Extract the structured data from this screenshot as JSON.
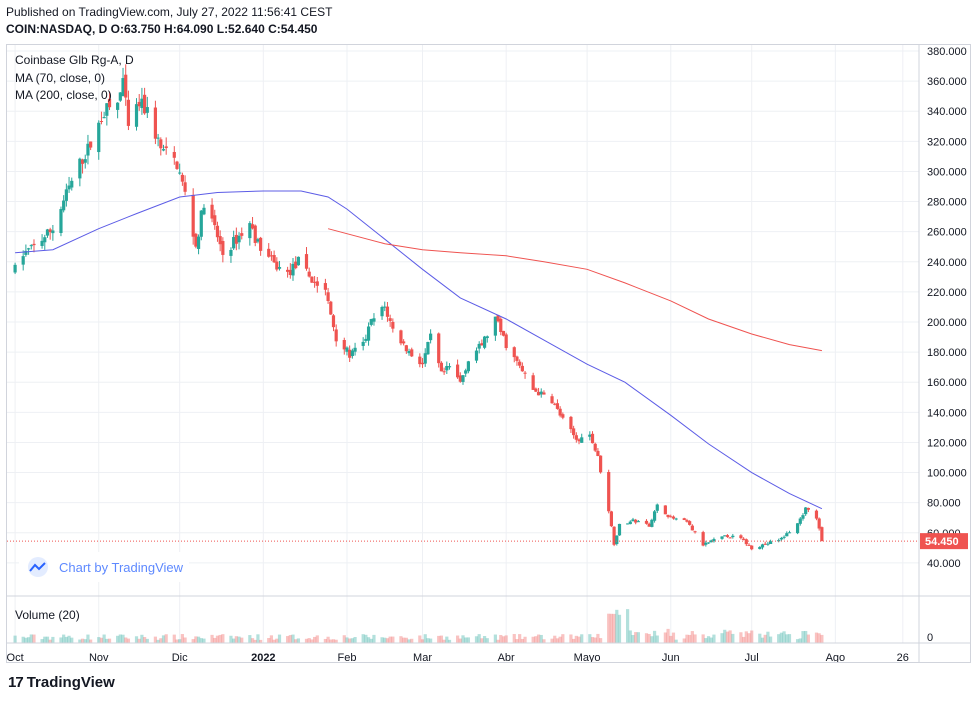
{
  "header": {
    "published": "Published on TradingView.com, July 27, 2022 11:56:41 CEST",
    "ohlc": "COIN:NASDAQ, D O:63.750 H:64.090 L:52.640 C:54.450"
  },
  "legend": {
    "symbol": "Coinbase Glb Rg-A, D",
    "ma70": "MA (70, close, 0)",
    "ma200": "MA (200, close, 0)",
    "volume": "Volume (20)"
  },
  "badge": {
    "text": "Chart by TradingView"
  },
  "footer": {
    "brand": "TradingView"
  },
  "colors": {
    "up": "#26a69a",
    "down": "#ef5350",
    "ma70": "#5c5ce6",
    "ma200": "#ef5350",
    "grid": "#eef0f4",
    "axis_text": "#131722",
    "last_price_bg": "#ef5350"
  },
  "chart_data": {
    "type": "candlestick",
    "symbol": "COIN:NASDAQ",
    "interval": "D",
    "y_axis": {
      "side": "right",
      "ylim": [
        20,
        380
      ],
      "ticks": [
        "40.000",
        "60.000",
        "80.000",
        "100.000",
        "120.000",
        "140.000",
        "160.000",
        "180.000",
        "200.000",
        "220.000",
        "240.000",
        "260.000",
        "280.000",
        "300.000",
        "320.000",
        "340.000",
        "360.000",
        "380.000"
      ]
    },
    "x_axis": {
      "labels": [
        {
          "label": "Oct",
          "date": "2021-10-01"
        },
        {
          "label": "Nov",
          "date": "2021-11-01"
        },
        {
          "label": "Dic",
          "date": "2021-12-01"
        },
        {
          "label": "2022",
          "date": "2022-01-01"
        },
        {
          "label": "Feb",
          "date": "2022-02-01"
        },
        {
          "label": "Mar",
          "date": "2022-03-01"
        },
        {
          "label": "Abr",
          "date": "2022-04-01"
        },
        {
          "label": "Mayo",
          "date": "2022-05-01"
        },
        {
          "label": "Jun",
          "date": "2022-06-01"
        },
        {
          "label": "Jul",
          "date": "2022-07-01"
        },
        {
          "label": "Ago",
          "date": "2022-08-01"
        },
        {
          "label": "26",
          "date": "2022-08-26"
        }
      ]
    },
    "last_price": "54.450",
    "last_ohlc": {
      "open": 63.75,
      "high": 64.09,
      "low": 52.64,
      "close": 54.45
    },
    "price_path": [
      [
        "2021-10-01",
        235
      ],
      [
        "2021-10-04",
        245
      ],
      [
        "2021-10-08",
        250
      ],
      [
        "2021-10-15",
        262
      ],
      [
        "2021-10-20",
        285
      ],
      [
        "2021-10-25",
        305
      ],
      [
        "2021-10-29",
        318
      ],
      [
        "2021-11-03",
        340
      ],
      [
        "2021-11-08",
        345
      ],
      [
        "2021-11-10",
        360
      ],
      [
        "2021-11-12",
        328
      ],
      [
        "2021-11-16",
        345
      ],
      [
        "2021-11-19",
        340
      ],
      [
        "2021-11-24",
        315
      ],
      [
        "2021-11-30",
        305
      ],
      [
        "2021-12-03",
        285
      ],
      [
        "2021-12-07",
        250
      ],
      [
        "2021-12-10",
        280
      ],
      [
        "2021-12-14",
        262
      ],
      [
        "2021-12-17",
        245
      ],
      [
        "2021-12-22",
        255
      ],
      [
        "2021-12-27",
        265
      ],
      [
        "2021-12-30",
        252
      ],
      [
        "2022-01-05",
        238
      ],
      [
        "2022-01-10",
        232
      ],
      [
        "2022-01-14",
        240
      ],
      [
        "2022-01-19",
        228
      ],
      [
        "2022-01-24",
        220
      ],
      [
        "2022-01-28",
        190
      ],
      [
        "2022-02-02",
        178
      ],
      [
        "2022-02-07",
        185
      ],
      [
        "2022-02-10",
        200
      ],
      [
        "2022-02-15",
        210
      ],
      [
        "2022-02-18",
        195
      ],
      [
        "2022-02-24",
        180
      ],
      [
        "2022-03-01",
        172
      ],
      [
        "2022-03-04",
        190
      ],
      [
        "2022-03-08",
        165
      ],
      [
        "2022-03-11",
        170
      ],
      [
        "2022-03-15",
        160
      ],
      [
        "2022-03-18",
        175
      ],
      [
        "2022-03-23",
        185
      ],
      [
        "2022-03-28",
        202
      ],
      [
        "2022-04-01",
        185
      ],
      [
        "2022-04-06",
        170
      ],
      [
        "2022-04-11",
        155
      ],
      [
        "2022-04-18",
        148
      ],
      [
        "2022-04-22",
        135
      ],
      [
        "2022-04-27",
        122
      ],
      [
        "2022-05-02",
        125
      ],
      [
        "2022-05-05",
        110
      ],
      [
        "2022-05-09",
        75
      ],
      [
        "2022-05-11",
        53
      ],
      [
        "2022-05-13",
        65
      ],
      [
        "2022-05-18",
        68
      ],
      [
        "2022-05-24",
        65
      ],
      [
        "2022-05-27",
        78
      ],
      [
        "2022-06-01",
        70
      ],
      [
        "2022-06-07",
        67
      ],
      [
        "2022-06-13",
        52
      ],
      [
        "2022-06-17",
        55
      ],
      [
        "2022-06-22",
        58
      ],
      [
        "2022-06-27",
        56
      ],
      [
        "2022-07-01",
        50
      ],
      [
        "2022-07-07",
        53
      ],
      [
        "2022-07-12",
        56
      ],
      [
        "2022-07-18",
        66
      ],
      [
        "2022-07-21",
        76
      ],
      [
        "2022-07-25",
        70
      ],
      [
        "2022-07-27",
        54.45
      ]
    ],
    "ma70": [
      [
        "2021-10-01",
        246
      ],
      [
        "2021-10-15",
        248
      ],
      [
        "2021-11-01",
        262
      ],
      [
        "2021-11-15",
        272
      ],
      [
        "2021-12-01",
        283
      ],
      [
        "2021-12-15",
        286
      ],
      [
        "2022-01-01",
        287
      ],
      [
        "2022-01-15",
        287
      ],
      [
        "2022-01-25",
        283
      ],
      [
        "2022-02-01",
        275
      ],
      [
        "2022-02-15",
        255
      ],
      [
        "2022-03-01",
        235
      ],
      [
        "2022-03-15",
        216
      ],
      [
        "2022-04-01",
        202
      ],
      [
        "2022-04-15",
        188
      ],
      [
        "2022-05-01",
        172
      ],
      [
        "2022-05-15",
        160
      ],
      [
        "2022-06-01",
        138
      ],
      [
        "2022-06-15",
        119
      ],
      [
        "2022-07-01",
        100
      ],
      [
        "2022-07-15",
        86
      ],
      [
        "2022-07-27",
        76
      ]
    ],
    "ma200": [
      [
        "2022-01-25",
        262
      ],
      [
        "2022-02-15",
        252
      ],
      [
        "2022-03-01",
        248
      ],
      [
        "2022-03-15",
        246
      ],
      [
        "2022-04-01",
        244
      ],
      [
        "2022-04-15",
        240
      ],
      [
        "2022-05-01",
        235
      ],
      [
        "2022-05-15",
        226
      ],
      [
        "2022-06-01",
        214
      ],
      [
        "2022-06-15",
        202
      ],
      [
        "2022-07-01",
        192
      ],
      [
        "2022-07-15",
        185
      ],
      [
        "2022-07-27",
        181
      ]
    ],
    "volume": {
      "ylim": [
        0,
        40000000
      ],
      "tick": "0"
    }
  }
}
